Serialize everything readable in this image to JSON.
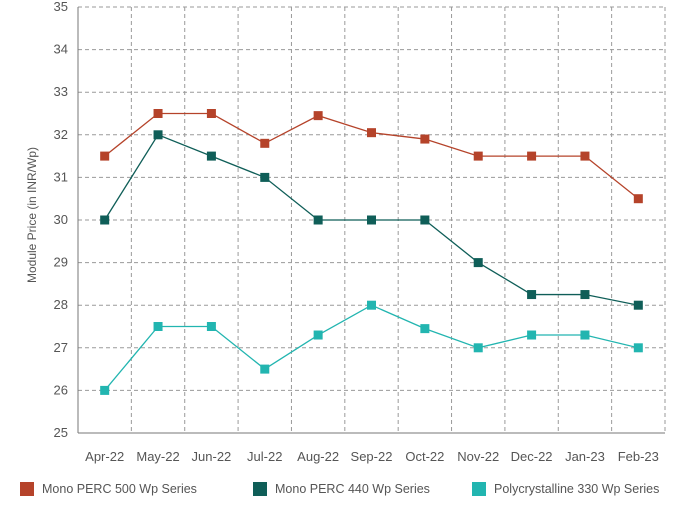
{
  "chart_data": {
    "type": "line",
    "title": "",
    "xlabel": "",
    "ylabel": "Module Price (in INR/Wp)",
    "ylim": [
      25,
      35
    ],
    "yticks": [
      25,
      26,
      27,
      28,
      29,
      30,
      31,
      32,
      33,
      34,
      35
    ],
    "grid": true,
    "legend_position": "bottom",
    "categories": [
      "Apr-22",
      "May-22",
      "Jun-22",
      "Jul-22",
      "Aug-22",
      "Sep-22",
      "Oct-22",
      "Nov-22",
      "Dec-22",
      "Jan-23",
      "Feb-23"
    ],
    "series": [
      {
        "name": "Mono PERC 500 Wp Series",
        "color": "#b5432a",
        "values": [
          31.5,
          32.5,
          32.5,
          31.8,
          32.45,
          32.05,
          31.9,
          31.5,
          31.5,
          31.5,
          30.5
        ]
      },
      {
        "name": "Mono PERC 440 Wp Series",
        "color": "#0f5e58",
        "values": [
          30,
          32,
          31.5,
          31,
          30,
          30,
          30,
          29,
          28.25,
          28.25,
          28
        ]
      },
      {
        "name": "Polycrystalline 330 Wp Series",
        "color": "#22b5b0",
        "values": [
          26,
          27.5,
          27.5,
          26.5,
          27.3,
          28,
          27.45,
          27,
          27.3,
          27.3,
          27
        ]
      }
    ]
  }
}
